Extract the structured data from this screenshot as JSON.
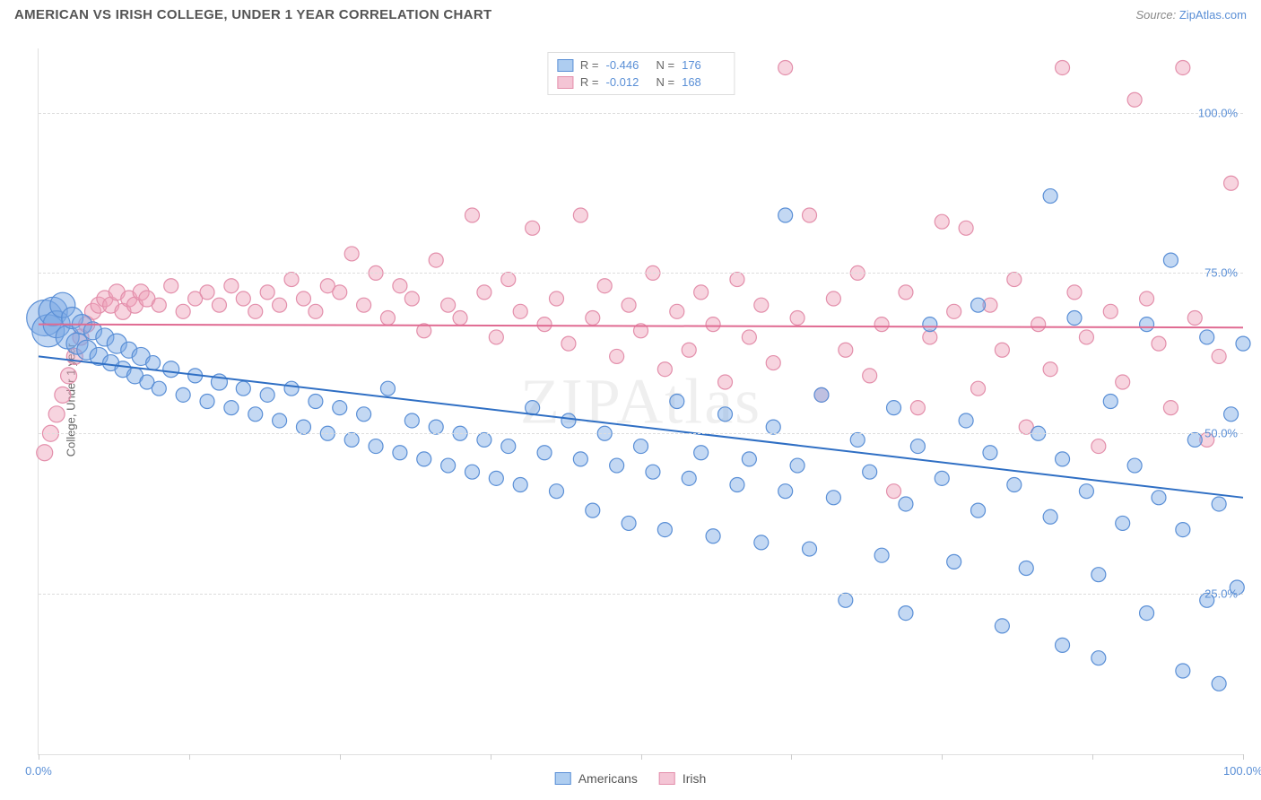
{
  "title": "AMERICAN VS IRISH COLLEGE, UNDER 1 YEAR CORRELATION CHART",
  "source_label": "Source: ",
  "source_value": "ZipAtlas.com",
  "watermark": "ZIPAtlas",
  "y_axis_label": "College, Under 1 year",
  "chart": {
    "type": "scatter",
    "background_color": "#ffffff",
    "grid_color": "#dddddd",
    "xlim": [
      0,
      100
    ],
    "ylim": [
      0,
      110
    ],
    "x_tick_positions": [
      0,
      12.5,
      25,
      37.5,
      50,
      62.5,
      75,
      87.5,
      100
    ],
    "x_tick_labels": {
      "0": "0.0%",
      "100": "100.0%"
    },
    "y_grid_positions": [
      25,
      50,
      75,
      100
    ],
    "y_tick_labels": {
      "25": "25.0%",
      "50": "50.0%",
      "75": "75.0%",
      "100": "100.0%"
    },
    "axis_label_color": "#5a8fd6",
    "axis_label_fontsize": 13,
    "title_fontsize": 15,
    "title_color": "#555555"
  },
  "legend_stats": {
    "r_label": "R =",
    "n_label": "N =",
    "series1": {
      "r": "-0.446",
      "n": "176"
    },
    "series2": {
      "r": "-0.012",
      "n": "168"
    }
  },
  "legend_bottom": {
    "series1_name": "Americans",
    "series2_name": "Irish"
  },
  "series": {
    "americans": {
      "color_fill": "rgba(122,168,228,0.45)",
      "color_stroke": "#5a8fd6",
      "swatch_fill": "#aecdf0",
      "swatch_border": "#5a8fd6",
      "marker_radius_min": 6,
      "marker_radius_max": 20,
      "trend": {
        "x1": 0,
        "y1": 62,
        "x2": 100,
        "y2": 40,
        "color": "#2f6fc4",
        "width": 2
      },
      "points": [
        {
          "x": 0.5,
          "y": 68,
          "r": 20
        },
        {
          "x": 0.8,
          "y": 66,
          "r": 18
        },
        {
          "x": 1.2,
          "y": 69,
          "r": 16
        },
        {
          "x": 1.5,
          "y": 67,
          "r": 15
        },
        {
          "x": 2,
          "y": 70,
          "r": 14
        },
        {
          "x": 2.4,
          "y": 65,
          "r": 13
        },
        {
          "x": 2.8,
          "y": 68,
          "r": 12
        },
        {
          "x": 3.2,
          "y": 64,
          "r": 12
        },
        {
          "x": 3.6,
          "y": 67,
          "r": 11
        },
        {
          "x": 4,
          "y": 63,
          "r": 11
        },
        {
          "x": 4.5,
          "y": 66,
          "r": 10
        },
        {
          "x": 5,
          "y": 62,
          "r": 10
        },
        {
          "x": 5.5,
          "y": 65,
          "r": 10
        },
        {
          "x": 6,
          "y": 61,
          "r": 9
        },
        {
          "x": 6.5,
          "y": 64,
          "r": 11
        },
        {
          "x": 7,
          "y": 60,
          "r": 9
        },
        {
          "x": 7.5,
          "y": 63,
          "r": 9
        },
        {
          "x": 8,
          "y": 59,
          "r": 9
        },
        {
          "x": 8.5,
          "y": 62,
          "r": 10
        },
        {
          "x": 9,
          "y": 58,
          "r": 8
        },
        {
          "x": 9.5,
          "y": 61,
          "r": 8
        },
        {
          "x": 10,
          "y": 57,
          "r": 8
        },
        {
          "x": 11,
          "y": 60,
          "r": 9
        },
        {
          "x": 12,
          "y": 56,
          "r": 8
        },
        {
          "x": 13,
          "y": 59,
          "r": 8
        },
        {
          "x": 14,
          "y": 55,
          "r": 8
        },
        {
          "x": 15,
          "y": 58,
          "r": 9
        },
        {
          "x": 16,
          "y": 54,
          "r": 8
        },
        {
          "x": 17,
          "y": 57,
          "r": 8
        },
        {
          "x": 18,
          "y": 53,
          "r": 8
        },
        {
          "x": 19,
          "y": 56,
          "r": 8
        },
        {
          "x": 20,
          "y": 52,
          "r": 8
        },
        {
          "x": 21,
          "y": 57,
          "r": 8
        },
        {
          "x": 22,
          "y": 51,
          "r": 8
        },
        {
          "x": 23,
          "y": 55,
          "r": 8
        },
        {
          "x": 24,
          "y": 50,
          "r": 8
        },
        {
          "x": 25,
          "y": 54,
          "r": 8
        },
        {
          "x": 26,
          "y": 49,
          "r": 8
        },
        {
          "x": 27,
          "y": 53,
          "r": 8
        },
        {
          "x": 28,
          "y": 48,
          "r": 8
        },
        {
          "x": 29,
          "y": 57,
          "r": 8
        },
        {
          "x": 30,
          "y": 47,
          "r": 8
        },
        {
          "x": 31,
          "y": 52,
          "r": 8
        },
        {
          "x": 32,
          "y": 46,
          "r": 8
        },
        {
          "x": 33,
          "y": 51,
          "r": 8
        },
        {
          "x": 34,
          "y": 45,
          "r": 8
        },
        {
          "x": 35,
          "y": 50,
          "r": 8
        },
        {
          "x": 36,
          "y": 44,
          "r": 8
        },
        {
          "x": 37,
          "y": 49,
          "r": 8
        },
        {
          "x": 38,
          "y": 43,
          "r": 8
        },
        {
          "x": 39,
          "y": 48,
          "r": 8
        },
        {
          "x": 40,
          "y": 42,
          "r": 8
        },
        {
          "x": 41,
          "y": 54,
          "r": 8
        },
        {
          "x": 42,
          "y": 47,
          "r": 8
        },
        {
          "x": 43,
          "y": 41,
          "r": 8
        },
        {
          "x": 44,
          "y": 52,
          "r": 8
        },
        {
          "x": 45,
          "y": 46,
          "r": 8
        },
        {
          "x": 46,
          "y": 38,
          "r": 8
        },
        {
          "x": 47,
          "y": 50,
          "r": 8
        },
        {
          "x": 48,
          "y": 45,
          "r": 8
        },
        {
          "x": 49,
          "y": 36,
          "r": 8
        },
        {
          "x": 50,
          "y": 48,
          "r": 8
        },
        {
          "x": 51,
          "y": 44,
          "r": 8
        },
        {
          "x": 52,
          "y": 35,
          "r": 8
        },
        {
          "x": 53,
          "y": 55,
          "r": 8
        },
        {
          "x": 54,
          "y": 43,
          "r": 8
        },
        {
          "x": 55,
          "y": 47,
          "r": 8
        },
        {
          "x": 56,
          "y": 34,
          "r": 8
        },
        {
          "x": 57,
          "y": 53,
          "r": 8
        },
        {
          "x": 58,
          "y": 42,
          "r": 8
        },
        {
          "x": 59,
          "y": 46,
          "r": 8
        },
        {
          "x": 60,
          "y": 33,
          "r": 8
        },
        {
          "x": 61,
          "y": 51,
          "r": 8
        },
        {
          "x": 62,
          "y": 41,
          "r": 8
        },
        {
          "x": 62,
          "y": 84,
          "r": 8
        },
        {
          "x": 63,
          "y": 45,
          "r": 8
        },
        {
          "x": 64,
          "y": 32,
          "r": 8
        },
        {
          "x": 65,
          "y": 56,
          "r": 8
        },
        {
          "x": 66,
          "y": 40,
          "r": 8
        },
        {
          "x": 67,
          "y": 24,
          "r": 8
        },
        {
          "x": 68,
          "y": 49,
          "r": 8
        },
        {
          "x": 69,
          "y": 44,
          "r": 8
        },
        {
          "x": 70,
          "y": 31,
          "r": 8
        },
        {
          "x": 71,
          "y": 54,
          "r": 8
        },
        {
          "x": 72,
          "y": 39,
          "r": 8
        },
        {
          "x": 72,
          "y": 22,
          "r": 8
        },
        {
          "x": 73,
          "y": 48,
          "r": 8
        },
        {
          "x": 74,
          "y": 67,
          "r": 8
        },
        {
          "x": 75,
          "y": 43,
          "r": 8
        },
        {
          "x": 76,
          "y": 30,
          "r": 8
        },
        {
          "x": 77,
          "y": 52,
          "r": 8
        },
        {
          "x": 78,
          "y": 38,
          "r": 8
        },
        {
          "x": 78,
          "y": 70,
          "r": 8
        },
        {
          "x": 79,
          "y": 47,
          "r": 8
        },
        {
          "x": 80,
          "y": 20,
          "r": 8
        },
        {
          "x": 81,
          "y": 42,
          "r": 8
        },
        {
          "x": 82,
          "y": 29,
          "r": 8
        },
        {
          "x": 83,
          "y": 50,
          "r": 8
        },
        {
          "x": 84,
          "y": 37,
          "r": 8
        },
        {
          "x": 84,
          "y": 87,
          "r": 8
        },
        {
          "x": 85,
          "y": 46,
          "r": 8
        },
        {
          "x": 85,
          "y": 17,
          "r": 8
        },
        {
          "x": 86,
          "y": 68,
          "r": 8
        },
        {
          "x": 87,
          "y": 41,
          "r": 8
        },
        {
          "x": 88,
          "y": 28,
          "r": 8
        },
        {
          "x": 88,
          "y": 15,
          "r": 8
        },
        {
          "x": 89,
          "y": 55,
          "r": 8
        },
        {
          "x": 90,
          "y": 36,
          "r": 8
        },
        {
          "x": 91,
          "y": 45,
          "r": 8
        },
        {
          "x": 92,
          "y": 22,
          "r": 8
        },
        {
          "x": 92,
          "y": 67,
          "r": 8
        },
        {
          "x": 93,
          "y": 40,
          "r": 8
        },
        {
          "x": 94,
          "y": 77,
          "r": 8
        },
        {
          "x": 95,
          "y": 35,
          "r": 8
        },
        {
          "x": 95,
          "y": 13,
          "r": 8
        },
        {
          "x": 96,
          "y": 49,
          "r": 8
        },
        {
          "x": 97,
          "y": 24,
          "r": 8
        },
        {
          "x": 97,
          "y": 65,
          "r": 8
        },
        {
          "x": 98,
          "y": 39,
          "r": 8
        },
        {
          "x": 98,
          "y": 11,
          "r": 8
        },
        {
          "x": 99,
          "y": 53,
          "r": 8
        },
        {
          "x": 99.5,
          "y": 26,
          "r": 8
        },
        {
          "x": 100,
          "y": 64,
          "r": 8
        }
      ]
    },
    "irish": {
      "color_fill": "rgba(238,160,185,0.45)",
      "color_stroke": "#e38fab",
      "swatch_fill": "#f4c5d5",
      "swatch_border": "#e38fab",
      "marker_radius_min": 6,
      "marker_radius_max": 12,
      "trend": {
        "x1": 0,
        "y1": 67,
        "x2": 100,
        "y2": 66.5,
        "color": "#e06b92",
        "width": 2
      },
      "points": [
        {
          "x": 0.5,
          "y": 47,
          "r": 9
        },
        {
          "x": 1,
          "y": 50,
          "r": 9
        },
        {
          "x": 1.5,
          "y": 53,
          "r": 9
        },
        {
          "x": 2,
          "y": 56,
          "r": 9
        },
        {
          "x": 2.5,
          "y": 59,
          "r": 9
        },
        {
          "x": 3,
          "y": 62,
          "r": 9
        },
        {
          "x": 3.5,
          "y": 65,
          "r": 9
        },
        {
          "x": 4,
          "y": 67,
          "r": 9
        },
        {
          "x": 4.5,
          "y": 69,
          "r": 9
        },
        {
          "x": 5,
          "y": 70,
          "r": 9
        },
        {
          "x": 5.5,
          "y": 71,
          "r": 9
        },
        {
          "x": 6,
          "y": 70,
          "r": 9
        },
        {
          "x": 6.5,
          "y": 72,
          "r": 9
        },
        {
          "x": 7,
          "y": 69,
          "r": 9
        },
        {
          "x": 7.5,
          "y": 71,
          "r": 9
        },
        {
          "x": 8,
          "y": 70,
          "r": 9
        },
        {
          "x": 8.5,
          "y": 72,
          "r": 9
        },
        {
          "x": 9,
          "y": 71,
          "r": 9
        },
        {
          "x": 10,
          "y": 70,
          "r": 8
        },
        {
          "x": 11,
          "y": 73,
          "r": 8
        },
        {
          "x": 12,
          "y": 69,
          "r": 8
        },
        {
          "x": 13,
          "y": 71,
          "r": 8
        },
        {
          "x": 14,
          "y": 72,
          "r": 8
        },
        {
          "x": 15,
          "y": 70,
          "r": 8
        },
        {
          "x": 16,
          "y": 73,
          "r": 8
        },
        {
          "x": 17,
          "y": 71,
          "r": 8
        },
        {
          "x": 18,
          "y": 69,
          "r": 8
        },
        {
          "x": 19,
          "y": 72,
          "r": 8
        },
        {
          "x": 20,
          "y": 70,
          "r": 8
        },
        {
          "x": 21,
          "y": 74,
          "r": 8
        },
        {
          "x": 22,
          "y": 71,
          "r": 8
        },
        {
          "x": 23,
          "y": 69,
          "r": 8
        },
        {
          "x": 24,
          "y": 73,
          "r": 8
        },
        {
          "x": 25,
          "y": 72,
          "r": 8
        },
        {
          "x": 26,
          "y": 78,
          "r": 8
        },
        {
          "x": 27,
          "y": 70,
          "r": 8
        },
        {
          "x": 28,
          "y": 75,
          "r": 8
        },
        {
          "x": 29,
          "y": 68,
          "r": 8
        },
        {
          "x": 30,
          "y": 73,
          "r": 8
        },
        {
          "x": 31,
          "y": 71,
          "r": 8
        },
        {
          "x": 32,
          "y": 66,
          "r": 8
        },
        {
          "x": 33,
          "y": 77,
          "r": 8
        },
        {
          "x": 34,
          "y": 70,
          "r": 8
        },
        {
          "x": 35,
          "y": 68,
          "r": 8
        },
        {
          "x": 36,
          "y": 84,
          "r": 8
        },
        {
          "x": 37,
          "y": 72,
          "r": 8
        },
        {
          "x": 38,
          "y": 65,
          "r": 8
        },
        {
          "x": 39,
          "y": 74,
          "r": 8
        },
        {
          "x": 40,
          "y": 69,
          "r": 8
        },
        {
          "x": 41,
          "y": 82,
          "r": 8
        },
        {
          "x": 42,
          "y": 67,
          "r": 8
        },
        {
          "x": 43,
          "y": 71,
          "r": 8
        },
        {
          "x": 44,
          "y": 64,
          "r": 8
        },
        {
          "x": 45,
          "y": 84,
          "r": 8
        },
        {
          "x": 46,
          "y": 68,
          "r": 8
        },
        {
          "x": 47,
          "y": 73,
          "r": 8
        },
        {
          "x": 48,
          "y": 62,
          "r": 8
        },
        {
          "x": 49,
          "y": 70,
          "r": 8
        },
        {
          "x": 50,
          "y": 66,
          "r": 8
        },
        {
          "x": 51,
          "y": 75,
          "r": 8
        },
        {
          "x": 52,
          "y": 60,
          "r": 8
        },
        {
          "x": 53,
          "y": 69,
          "r": 8
        },
        {
          "x": 54,
          "y": 63,
          "r": 8
        },
        {
          "x": 55,
          "y": 72,
          "r": 8
        },
        {
          "x": 56,
          "y": 67,
          "r": 8
        },
        {
          "x": 57,
          "y": 58,
          "r": 8
        },
        {
          "x": 58,
          "y": 74,
          "r": 8
        },
        {
          "x": 59,
          "y": 65,
          "r": 8
        },
        {
          "x": 60,
          "y": 70,
          "r": 8
        },
        {
          "x": 61,
          "y": 61,
          "r": 8
        },
        {
          "x": 62,
          "y": 107,
          "r": 8
        },
        {
          "x": 63,
          "y": 68,
          "r": 8
        },
        {
          "x": 64,
          "y": 84,
          "r": 8
        },
        {
          "x": 65,
          "y": 56,
          "r": 8
        },
        {
          "x": 66,
          "y": 71,
          "r": 8
        },
        {
          "x": 67,
          "y": 63,
          "r": 8
        },
        {
          "x": 68,
          "y": 75,
          "r": 8
        },
        {
          "x": 69,
          "y": 59,
          "r": 8
        },
        {
          "x": 70,
          "y": 67,
          "r": 8
        },
        {
          "x": 71,
          "y": 41,
          "r": 8
        },
        {
          "x": 72,
          "y": 72,
          "r": 8
        },
        {
          "x": 73,
          "y": 54,
          "r": 8
        },
        {
          "x": 74,
          "y": 65,
          "r": 8
        },
        {
          "x": 75,
          "y": 83,
          "r": 8
        },
        {
          "x": 76,
          "y": 69,
          "r": 8
        },
        {
          "x": 77,
          "y": 82,
          "r": 8
        },
        {
          "x": 78,
          "y": 57,
          "r": 8
        },
        {
          "x": 79,
          "y": 70,
          "r": 8
        },
        {
          "x": 80,
          "y": 63,
          "r": 8
        },
        {
          "x": 81,
          "y": 74,
          "r": 8
        },
        {
          "x": 82,
          "y": 51,
          "r": 8
        },
        {
          "x": 83,
          "y": 67,
          "r": 8
        },
        {
          "x": 84,
          "y": 60,
          "r": 8
        },
        {
          "x": 85,
          "y": 107,
          "r": 8
        },
        {
          "x": 86,
          "y": 72,
          "r": 8
        },
        {
          "x": 87,
          "y": 65,
          "r": 8
        },
        {
          "x": 88,
          "y": 48,
          "r": 8
        },
        {
          "x": 89,
          "y": 69,
          "r": 8
        },
        {
          "x": 90,
          "y": 58,
          "r": 8
        },
        {
          "x": 91,
          "y": 102,
          "r": 8
        },
        {
          "x": 92,
          "y": 71,
          "r": 8
        },
        {
          "x": 93,
          "y": 64,
          "r": 8
        },
        {
          "x": 94,
          "y": 54,
          "r": 8
        },
        {
          "x": 95,
          "y": 107,
          "r": 8
        },
        {
          "x": 96,
          "y": 68,
          "r": 8
        },
        {
          "x": 97,
          "y": 49,
          "r": 8
        },
        {
          "x": 98,
          "y": 62,
          "r": 8
        },
        {
          "x": 99,
          "y": 89,
          "r": 8
        }
      ]
    }
  }
}
